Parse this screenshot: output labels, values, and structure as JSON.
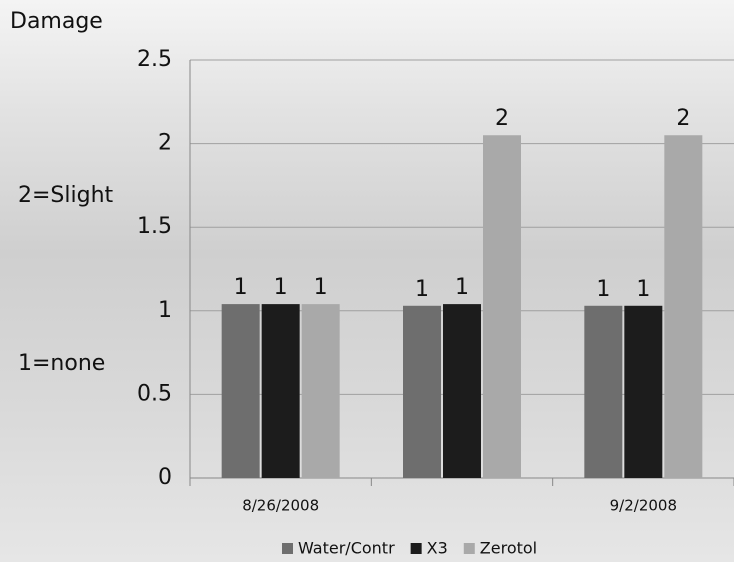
{
  "chart_data": {
    "type": "bar",
    "title": "Damage",
    "annotations": [
      "2=Slight",
      "1=none"
    ],
    "categories": [
      "8/26/2008",
      null,
      "9/2/2008"
    ],
    "series": [
      {
        "name": "Water/Contr",
        "color": "#6e6e6e",
        "values": [
          1.04,
          1.03,
          1.03
        ],
        "value_labels": [
          "1",
          "1",
          "1"
        ]
      },
      {
        "name": "X3",
        "color": "#1c1c1c",
        "values": [
          1.04,
          1.04,
          1.03
        ],
        "value_labels": [
          "1",
          "1",
          "1"
        ]
      },
      {
        "name": "Zerotol",
        "color": "#a9a9a9",
        "values": [
          1.04,
          2.05,
          2.05
        ],
        "value_labels": [
          "1",
          "2",
          "2"
        ]
      }
    ],
    "ylim": [
      0,
      2.5
    ],
    "yticks": [
      0,
      0.5,
      1,
      1.5,
      2,
      2.5
    ],
    "grid": true
  }
}
